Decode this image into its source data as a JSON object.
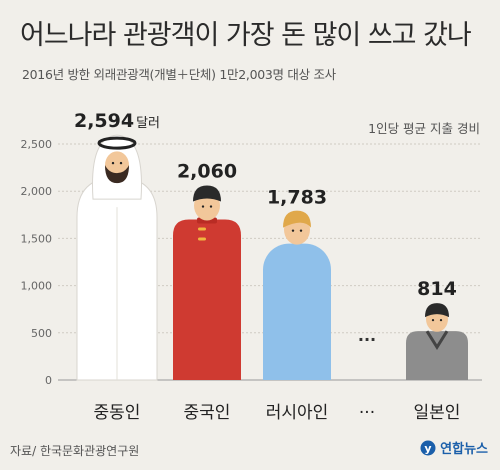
{
  "title": "어느나라 관광객이 가장 돈 많이 쓰고 갔나",
  "subtitle": "2016년 방한 외래관광객(개별＋단체) 1만2,003명 대상 조사",
  "unit_note": "1인당 평균 지출 경비",
  "source": "자료/ 한국문화관광연구원",
  "logo_text": "연합뉴스",
  "colors": {
    "background": "#f1efea",
    "saudi_robe": "#ffffff",
    "china_robe": "#cf3a31",
    "russia_robe": "#8fc0ea",
    "japan_robe": "#8d8d8d",
    "logo": "#1b5faa"
  },
  "chart_data": {
    "type": "bar",
    "categories": [
      "중동인",
      "중국인",
      "러시아인",
      "···",
      "일본인"
    ],
    "values": [
      2594,
      2060,
      1783,
      null,
      814
    ],
    "data_labels": [
      "2,594",
      "2,060",
      "1,783",
      "",
      "814"
    ],
    "value_unit_label": "달러",
    "gap_marker": "···",
    "yticks": [
      "0",
      "500",
      "1,000",
      "1,500",
      "2,000",
      "2,500"
    ],
    "ytick_values": [
      0,
      500,
      1000,
      1500,
      2000,
      2500
    ],
    "ylim": [
      0,
      2500
    ],
    "grid": true,
    "icons": [
      "saudi-man-icon",
      "chinese-man-icon",
      "russian-man-icon",
      "",
      "japanese-man-icon"
    ]
  }
}
